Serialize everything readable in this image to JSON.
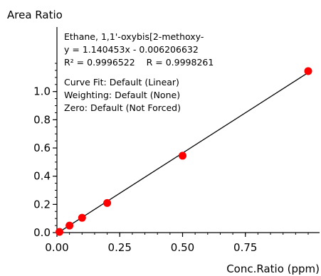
{
  "chart_data": {
    "type": "scatter",
    "ylabel": "Area Ratio",
    "xlabel": "Conc.Ratio (ppm)",
    "xlim": [
      0.0,
      1.0
    ],
    "ylim": [
      0.0,
      1.2
    ],
    "x_ticks": [
      0.0,
      0.25,
      0.5,
      0.75
    ],
    "x_tick_labels": [
      "0.00",
      "0.25",
      "0.50",
      "0.75"
    ],
    "y_ticks": [
      0.0,
      0.2,
      0.4,
      0.6,
      0.8,
      1.0
    ],
    "y_tick_labels": [
      "0.0",
      "0.2",
      "0.4",
      "0.6",
      "0.8",
      "1.0"
    ],
    "grid": false,
    "point_color": "#ff0000",
    "series": [
      {
        "x": [
          0.01,
          0.05,
          0.1,
          0.2,
          0.5,
          1.0
        ],
        "y": [
          0.005,
          0.05,
          0.105,
          0.21,
          0.545,
          1.145
        ]
      }
    ],
    "fit": {
      "slope": 1.140453,
      "intercept": -0.006206632
    },
    "annotations": [
      "Ethane, 1,1'-oxybis[2-methoxy-",
      "y = 1.140453x - 0.006206632",
      "R² = 0.9996522    R = 0.9998261",
      "Curve Fit: Default (Linear)",
      "Weighting: Default (None)",
      "Zero: Default (Not Forced)"
    ]
  }
}
